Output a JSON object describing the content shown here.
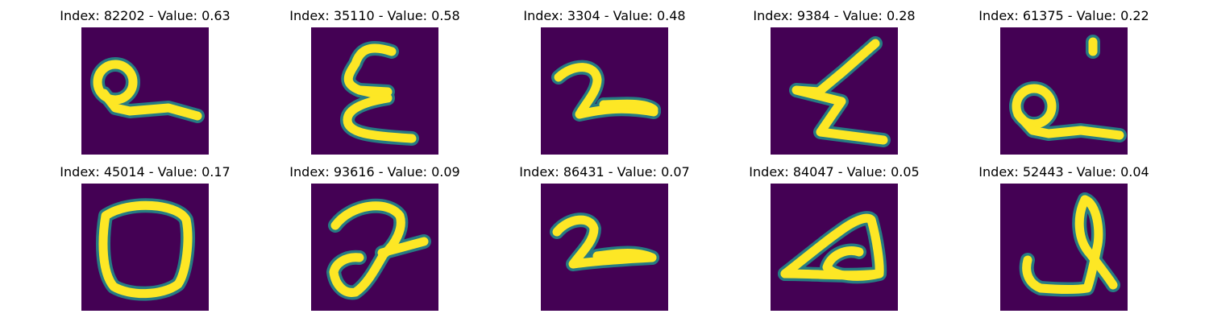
{
  "figure": {
    "colors": {
      "background": "#440154",
      "stroke_mid": "#21918c",
      "stroke_core": "#fde725"
    },
    "panels": [
      {
        "title": "Index: 82202 - Value: 0.63",
        "index": 82202,
        "value": 0.63,
        "glyph": "q-loop-underline"
      },
      {
        "title": "Index: 35110 - Value: 0.58",
        "index": 35110,
        "value": 0.58,
        "glyph": "epsilon-like"
      },
      {
        "title": "Index: 3304 - Value: 0.48",
        "index": 3304,
        "value": 0.48,
        "glyph": "two"
      },
      {
        "title": "Index: 9384 - Value: 0.28",
        "index": 9384,
        "value": 0.28,
        "glyph": "zigzag"
      },
      {
        "title": "Index: 61375 - Value: 0.22",
        "index": 61375,
        "value": 0.22,
        "glyph": "q-loop-underline"
      },
      {
        "title": "Index: 45014 - Value: 0.17",
        "index": 45014,
        "value": 0.17,
        "glyph": "zero"
      },
      {
        "title": "Index: 93616 - Value: 0.09",
        "index": 93616,
        "value": 0.09,
        "glyph": "curly-seven"
      },
      {
        "title": "Index: 86431 - Value: 0.07",
        "index": 86431,
        "value": 0.07,
        "glyph": "two"
      },
      {
        "title": "Index: 84047 - Value: 0.05",
        "index": 84047,
        "value": 0.05,
        "glyph": "loop-triangle"
      },
      {
        "title": "Index: 52443 - Value: 0.04",
        "index": 52443,
        "value": 0.04,
        "glyph": "l-loop"
      }
    ]
  }
}
